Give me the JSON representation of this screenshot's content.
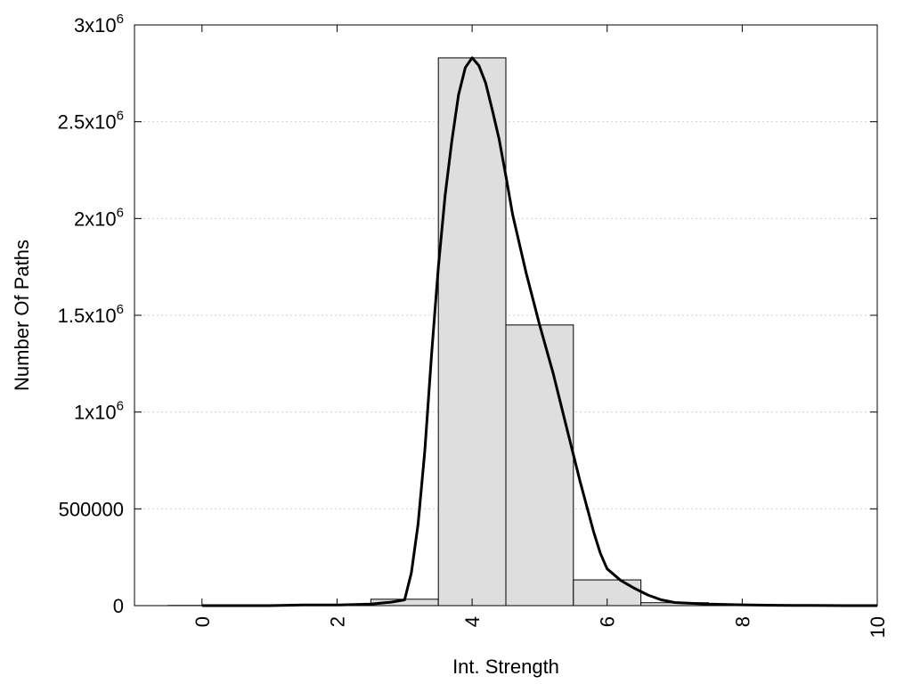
{
  "chart_data": {
    "type": "bar",
    "title": "",
    "xlabel": "Int. Strength",
    "ylabel": "Number Of Paths",
    "xlim": [
      -1,
      10
    ],
    "ylim": [
      0,
      3000000
    ],
    "grid": "horizontal dotted",
    "x_ticks": [
      {
        "value": 0,
        "label": "0"
      },
      {
        "value": 2,
        "label": "2"
      },
      {
        "value": 4,
        "label": "4"
      },
      {
        "value": 6,
        "label": "6"
      },
      {
        "value": 8,
        "label": "8"
      },
      {
        "value": 10,
        "label": "10"
      }
    ],
    "y_ticks": [
      {
        "value": 0,
        "mantissa": "0",
        "exponent": ""
      },
      {
        "value": 500000,
        "mantissa": "500000",
        "exponent": ""
      },
      {
        "value": 1000000,
        "mantissa": "1x10",
        "exponent": "6"
      },
      {
        "value": 1500000,
        "mantissa": "1.5x10",
        "exponent": "6"
      },
      {
        "value": 2000000,
        "mantissa": "2x10",
        "exponent": "6"
      },
      {
        "value": 2500000,
        "mantissa": "2.5x10",
        "exponent": "6"
      },
      {
        "value": 3000000,
        "mantissa": "3x10",
        "exponent": "6"
      }
    ],
    "bars": {
      "width": 1,
      "color": "#dedede",
      "x": [
        0,
        1,
        2,
        3,
        4,
        5,
        6,
        7,
        8,
        9
      ],
      "values": [
        1000,
        2000,
        5000,
        33000,
        2830000,
        1450000,
        133000,
        15000,
        3000,
        1000
      ]
    },
    "curve": {
      "color": "#000000",
      "x": [
        0,
        0.5,
        1,
        1.5,
        2,
        2.5,
        2.8,
        3,
        3.1,
        3.2,
        3.3,
        3.4,
        3.5,
        3.6,
        3.7,
        3.8,
        3.9,
        4,
        4.1,
        4.2,
        4.3,
        4.4,
        4.5,
        4.6,
        4.8,
        5,
        5.2,
        5.4,
        5.6,
        5.8,
        5.9,
        6,
        6.2,
        6.4,
        6.6,
        6.8,
        7,
        7.5,
        8,
        8.5,
        9,
        9.5,
        10
      ],
      "y": [
        0,
        0,
        0,
        3000,
        3000,
        8000,
        18000,
        30000,
        170000,
        420000,
        800000,
        1300000,
        1750000,
        2120000,
        2400000,
        2640000,
        2780000,
        2830000,
        2790000,
        2700000,
        2560000,
        2410000,
        2220000,
        2020000,
        1720000,
        1450000,
        1200000,
        920000,
        640000,
        380000,
        270000,
        190000,
        130000,
        90000,
        55000,
        30000,
        16000,
        8000,
        4000,
        2000,
        1000,
        0,
        0
      ]
    }
  }
}
